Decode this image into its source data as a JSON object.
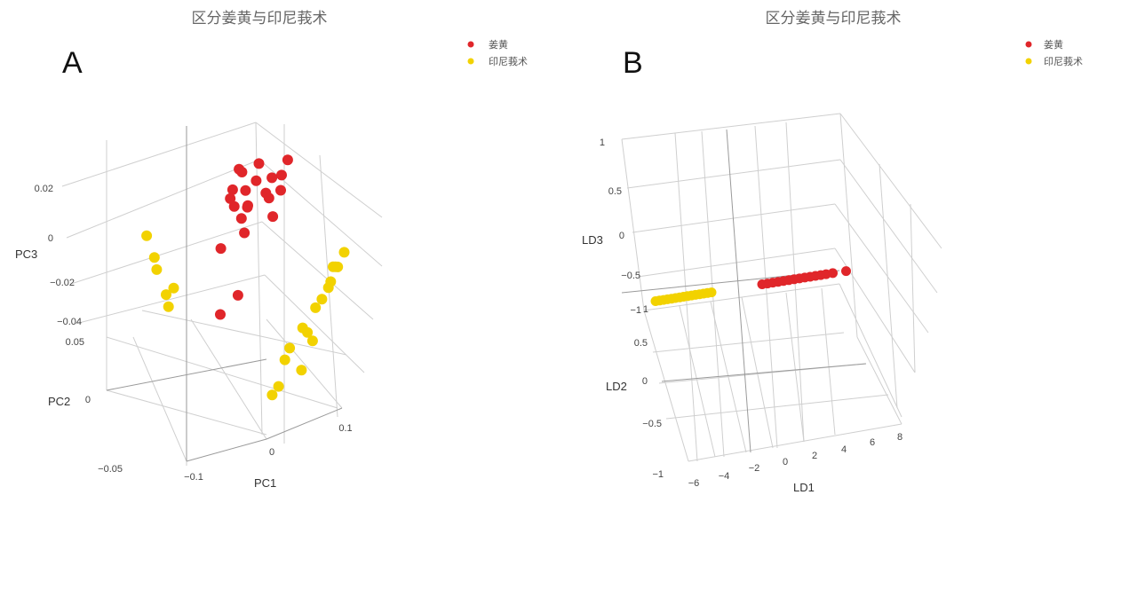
{
  "chart_data": [
    {
      "type": "scatter",
      "dimension": "3d",
      "panel_label": "A",
      "title": "区分姜黄与印尼莪术",
      "xlabel": "PC1",
      "ylabel": "PC2",
      "zlabel": "PC3",
      "x_ticks": [
        "−0.1",
        "0",
        "0.1"
      ],
      "y_ticks": [
        "−0.05",
        "0",
        "0.05"
      ],
      "z_ticks": [
        "−0.04",
        "−0.02",
        "0",
        "0.02"
      ],
      "xlim": [
        -0.14,
        0.13
      ],
      "ylim": [
        -0.07,
        0.08
      ],
      "zlim": [
        -0.05,
        0.03
      ],
      "legend_position": "top-right",
      "grid": true,
      "series": [
        {
          "name": "姜黄",
          "color": "#e0262a",
          "points": [
            [
              -0.02,
              0.01,
              0.018
            ],
            [
              -0.03,
              0.005,
              0.012
            ],
            [
              -0.01,
              0.015,
              0.01
            ],
            [
              0.0,
              0.008,
              0.015
            ],
            [
              -0.025,
              0.012,
              0.005
            ],
            [
              -0.015,
              -0.002,
              0.008
            ],
            [
              0.01,
              0.004,
              0.012
            ],
            [
              -0.005,
              0.02,
              0.004
            ],
            [
              -0.035,
              0.0,
              0.01
            ],
            [
              0.005,
              0.012,
              0.02
            ],
            [
              -0.02,
              -0.005,
              0.0
            ],
            [
              0.02,
              0.01,
              0.016
            ],
            [
              -0.01,
              0.025,
              0.014
            ],
            [
              0.03,
              0.006,
              0.018
            ],
            [
              0.04,
              0.012,
              0.022
            ],
            [
              -0.04,
              0.015,
              -0.01
            ],
            [
              -0.03,
              -0.01,
              -0.02
            ],
            [
              0.015,
              -0.004,
              0.006
            ],
            [
              0.035,
              0.02,
              0.01
            ],
            [
              -0.045,
              0.005,
              -0.03
            ],
            [
              0.025,
              0.03,
              0.005
            ],
            [
              -0.018,
              0.008,
              0.002
            ]
          ]
        },
        {
          "name": "印尼莪术",
          "color": "#f2d200",
          "points": [
            [
              -0.11,
              0.04,
              -0.02
            ],
            [
              -0.1,
              0.03,
              -0.03
            ],
            [
              -0.105,
              0.045,
              -0.025
            ],
            [
              -0.095,
              0.035,
              -0.035
            ],
            [
              -0.115,
              0.05,
              -0.015
            ],
            [
              0.02,
              -0.04,
              -0.03
            ],
            [
              0.04,
              -0.03,
              -0.025
            ],
            [
              0.06,
              -0.02,
              -0.02
            ],
            [
              0.08,
              -0.01,
              -0.015
            ],
            [
              0.09,
              0.0,
              -0.01
            ],
            [
              0.1,
              0.01,
              -0.012
            ],
            [
              0.03,
              -0.05,
              -0.035
            ],
            [
              0.05,
              -0.035,
              -0.028
            ],
            [
              0.07,
              -0.015,
              -0.018
            ],
            [
              0.11,
              0.015,
              -0.008
            ],
            [
              0.0,
              -0.055,
              -0.04
            ],
            [
              -0.01,
              -0.06,
              -0.042
            ],
            [
              0.085,
              -0.005,
              -0.014
            ],
            [
              0.095,
              0.005,
              -0.011
            ],
            [
              0.045,
              -0.032,
              -0.026
            ],
            [
              -0.09,
              0.032,
              -0.028
            ],
            [
              0.012,
              -0.045,
              -0.033
            ]
          ]
        }
      ]
    },
    {
      "type": "scatter",
      "dimension": "3d",
      "panel_label": "B",
      "title": "区分姜黄与印尼莪术",
      "xlabel": "LD1",
      "ylabel": "LD2",
      "zlabel": "LD3",
      "x_ticks": [
        "−6",
        "−4",
        "−2",
        "0",
        "2",
        "4",
        "6",
        "8"
      ],
      "y_ticks": [
        "−1",
        "−0.5",
        "0",
        "0.5",
        "1"
      ],
      "z_ticks": [
        "−1",
        "−0.5",
        "0",
        "0.5",
        "1"
      ],
      "xlim": [
        -7,
        9
      ],
      "ylim": [
        -1,
        1
      ],
      "zlim": [
        -1,
        1
      ],
      "legend_position": "top-right",
      "grid": true,
      "series": [
        {
          "name": "姜黄",
          "color": "#e0262a",
          "points": [
            [
              1.2,
              0,
              0
            ],
            [
              1.6,
              0,
              0
            ],
            [
              2.0,
              0,
              0
            ],
            [
              2.4,
              0,
              0
            ],
            [
              2.8,
              0,
              0
            ],
            [
              3.2,
              0,
              0
            ],
            [
              3.6,
              0,
              0
            ],
            [
              4.0,
              0,
              0
            ],
            [
              4.4,
              0,
              0
            ],
            [
              4.8,
              0,
              0
            ],
            [
              5.2,
              0,
              0
            ],
            [
              5.6,
              0,
              0
            ],
            [
              6.0,
              0,
              0
            ],
            [
              6.5,
              0,
              0
            ],
            [
              7.5,
              0,
              0
            ]
          ]
        },
        {
          "name": "印尼莪术",
          "color": "#f2d200",
          "points": [
            [
              -6.8,
              0,
              0
            ],
            [
              -6.5,
              0,
              0
            ],
            [
              -6.2,
              0,
              0
            ],
            [
              -5.9,
              0,
              0
            ],
            [
              -5.6,
              0,
              0
            ],
            [
              -5.3,
              0,
              0
            ],
            [
              -5.0,
              0,
              0
            ],
            [
              -4.7,
              0,
              0
            ],
            [
              -4.4,
              0,
              0
            ],
            [
              -4.1,
              0,
              0
            ],
            [
              -3.8,
              0,
              0
            ],
            [
              -3.5,
              0,
              0
            ],
            [
              -3.2,
              0,
              0
            ],
            [
              -2.9,
              0,
              0
            ],
            [
              -2.6,
              0,
              0
            ]
          ]
        }
      ]
    }
  ]
}
